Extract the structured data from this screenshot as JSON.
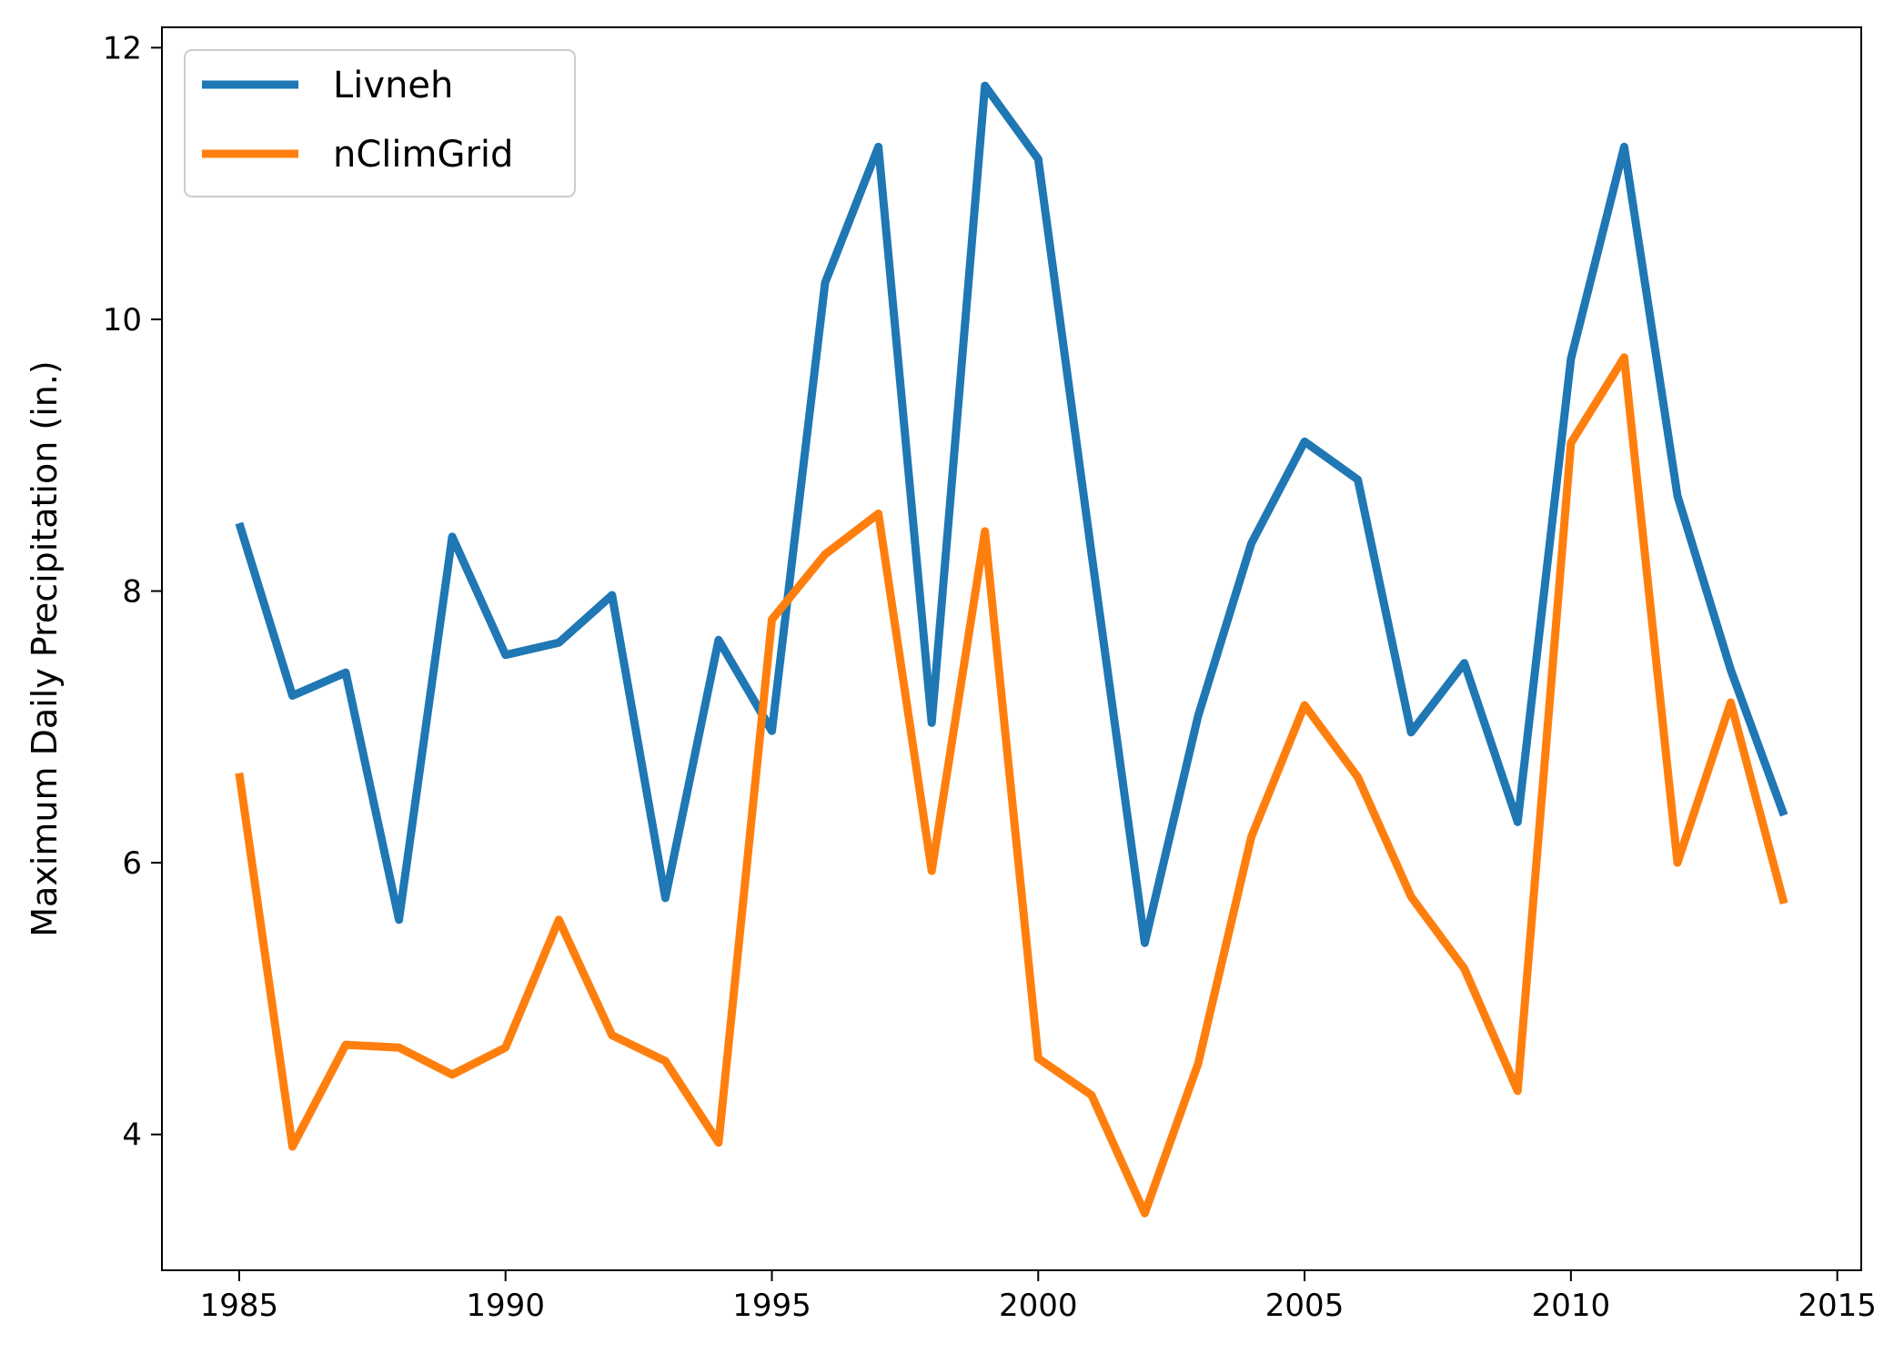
{
  "chart_data": {
    "type": "line",
    "title": "",
    "xlabel": "",
    "ylabel": "Maximum Daily Precipitation (in.)",
    "xlim": [
      1983.55,
      2015.45
    ],
    "ylim": [
      3.0,
      12.15
    ],
    "xticks": [
      1985,
      1990,
      1995,
      2000,
      2005,
      2010,
      2015
    ],
    "yticks": [
      4,
      6,
      8,
      10,
      12
    ],
    "grid": false,
    "legend_position": "upper left",
    "x": [
      1985,
      1986,
      1987,
      1988,
      1989,
      1990,
      1991,
      1992,
      1993,
      1994,
      1995,
      1996,
      1997,
      1998,
      1999,
      2000,
      2001,
      2002,
      2003,
      2004,
      2005,
      2006,
      2007,
      2008,
      2009,
      2010,
      2011,
      2012,
      2013,
      2014
    ],
    "series": [
      {
        "name": "Livneh",
        "color": "#1f77b4",
        "values": [
          8.5,
          7.23,
          7.4,
          5.58,
          8.4,
          7.53,
          7.62,
          7.97,
          5.74,
          7.64,
          6.97,
          10.27,
          11.27,
          7.03,
          11.72,
          11.18,
          8.28,
          5.41,
          7.08,
          8.35,
          9.1,
          8.82,
          6.96,
          7.47,
          6.3,
          9.71,
          11.27,
          8.7,
          7.42,
          6.35
        ]
      },
      {
        "name": "nClimGrid",
        "color": "#ff7f0e",
        "values": [
          6.66,
          3.91,
          4.66,
          4.64,
          4.44,
          4.64,
          5.58,
          4.73,
          4.54,
          3.94,
          7.79,
          8.27,
          8.57,
          5.94,
          8.44,
          4.56,
          4.29,
          3.42,
          4.52,
          6.19,
          7.16,
          6.63,
          5.75,
          5.22,
          4.32,
          9.09,
          9.72,
          6.0,
          7.18,
          5.7
        ]
      }
    ]
  }
}
